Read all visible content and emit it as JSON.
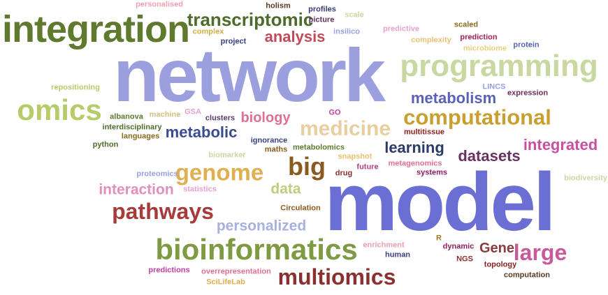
{
  "palette": {
    "lavender": "#9b9fde",
    "periwinkle": "#6b6fd4",
    "olive": "#5f7a2e",
    "olive_dark": "#4d6b2a",
    "lime": "#b6cc6a",
    "sage": "#c8d8a0",
    "gold": "#d4b048",
    "ochre": "#b89a3a",
    "brown": "#8a5a1e",
    "maroon": "#8b2f2f",
    "brick": "#a83a3a",
    "rose": "#e6608a",
    "pink": "#e77aa8",
    "magenta": "#c040a0",
    "plum": "#6a3060",
    "navy": "#3a3f80",
    "tan": "#e8c070",
    "pale_rose": "#e8a0b0"
  },
  "words": [
    {
      "text": "network",
      "color": "#9b9fde"
    },
    {
      "text": "model",
      "color": "#6b6fd4"
    },
    {
      "text": "integration",
      "color": "#5f7a2e"
    },
    {
      "text": "programming",
      "color": "#c8d8a0"
    },
    {
      "text": "omics",
      "color": "#b6cc6a"
    },
    {
      "text": "bioinformatics",
      "color": "#7e9a42"
    },
    {
      "text": "transcriptomic",
      "color": "#4d6b2a"
    },
    {
      "text": "computational",
      "color": "#c8a030"
    },
    {
      "text": "medicine",
      "color": "#e8cfa0"
    },
    {
      "text": "genome",
      "color": "#e0b050"
    },
    {
      "text": "pathways",
      "color": "#a83a3a"
    },
    {
      "text": "multiomics",
      "color": "#8b2f2f"
    },
    {
      "text": "big",
      "color": "#8a5a1e"
    },
    {
      "text": "large",
      "color": "#c85a9a"
    },
    {
      "text": "analysis",
      "color": "#c24a5a"
    },
    {
      "text": "metabolism",
      "color": "#5a62b8"
    },
    {
      "text": "metabolic",
      "color": "#3a4a90"
    },
    {
      "text": "integrated",
      "color": "#c850a0"
    },
    {
      "text": "datasets",
      "color": "#6a3060"
    },
    {
      "text": "learning",
      "color": "#2a3a6a"
    },
    {
      "text": "biology",
      "color": "#e07090"
    },
    {
      "text": "interaction",
      "color": "#e090c0"
    },
    {
      "text": "personalized",
      "color": "#a8b0e0"
    },
    {
      "text": "data",
      "color": "#c0cc80"
    },
    {
      "text": "Gene",
      "color": "#8a3a40"
    },
    {
      "text": "personalised",
      "color": "#f0a0b0"
    },
    {
      "text": "holism",
      "color": "#5a3a20"
    },
    {
      "text": "profiles",
      "color": "#3a3a7a"
    },
    {
      "text": "scale",
      "color": "#c8d8a0"
    },
    {
      "text": "picture",
      "color": "#5a3060"
    },
    {
      "text": "complex",
      "color": "#d4b048"
    },
    {
      "text": "project",
      "color": "#3a3f80"
    },
    {
      "text": "insilico",
      "color": "#9b9fde"
    },
    {
      "text": "predictive",
      "color": "#e8a0d0"
    },
    {
      "text": "scaled",
      "color": "#8a6a20"
    },
    {
      "text": "complexity",
      "color": "#e8c070"
    },
    {
      "text": "prediction",
      "color": "#a02050"
    },
    {
      "text": "microbiome",
      "color": "#e8d080"
    },
    {
      "text": "protein",
      "color": "#5a62b8"
    },
    {
      "text": "repositioning",
      "color": "#b6cc6a"
    },
    {
      "text": "LINCS",
      "color": "#9b9fde"
    },
    {
      "text": "expression",
      "color": "#6a3060"
    },
    {
      "text": "albanova",
      "color": "#5f7a2e"
    },
    {
      "text": "machine",
      "color": "#d4c080"
    },
    {
      "text": "GSA",
      "color": "#e8a0d0"
    },
    {
      "text": "clusters",
      "color": "#5a3a6a"
    },
    {
      "text": "GO",
      "color": "#c040a0"
    },
    {
      "text": "multitissue",
      "color": "#8a2020"
    },
    {
      "text": "interdisciplinary",
      "color": "#4d6b2a"
    },
    {
      "text": "languages",
      "color": "#8a6a20"
    },
    {
      "text": "ignorance",
      "color": "#3a3f80"
    },
    {
      "text": "python",
      "color": "#4d6b2a"
    },
    {
      "text": "maths",
      "color": "#8a5a1e"
    },
    {
      "text": "metabolomics",
      "color": "#5f7a2e"
    },
    {
      "text": "biomarker",
      "color": "#c8d8a0"
    },
    {
      "text": "snapshot",
      "color": "#e8c070"
    },
    {
      "text": "drug",
      "color": "#8b2f2f"
    },
    {
      "text": "future",
      "color": "#b04080"
    },
    {
      "text": "metagenomics",
      "color": "#e07090"
    },
    {
      "text": "systems",
      "color": "#8a2060"
    },
    {
      "text": "proteomics",
      "color": "#9b9fde"
    },
    {
      "text": "statistics",
      "color": "#e8a0d0"
    },
    {
      "text": "biodiversity",
      "color": "#c8d8a0"
    },
    {
      "text": "Circulation",
      "color": "#8a5a1e"
    },
    {
      "text": "enrichment",
      "color": "#e8a0b0"
    },
    {
      "text": "R",
      "color": "#9b7a20"
    },
    {
      "text": "dynamic",
      "color": "#8a2060"
    },
    {
      "text": "human",
      "color": "#3a3f80"
    },
    {
      "text": "NGS",
      "color": "#8b2f2f"
    },
    {
      "text": "predictions",
      "color": "#c040a0"
    },
    {
      "text": "overrepresentation",
      "color": "#e07090"
    },
    {
      "text": "SciLifeLab",
      "color": "#e0b050"
    },
    {
      "text": "topology",
      "color": "#8a2020"
    },
    {
      "text": "computation",
      "color": "#5a3a20"
    }
  ]
}
